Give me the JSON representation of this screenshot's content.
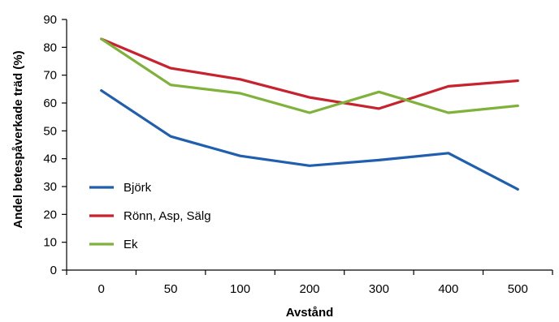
{
  "chart_data": {
    "type": "line",
    "title": "",
    "xlabel": "Avstånd",
    "ylabel": "Andel betespåverkade träd (%)",
    "categories": [
      "0",
      "50",
      "100",
      "200",
      "300",
      "400",
      "500"
    ],
    "ylim": [
      0,
      90
    ],
    "yticks": [
      0,
      10,
      20,
      30,
      40,
      50,
      60,
      70,
      80,
      90
    ],
    "grid": false,
    "legend_position": "left",
    "series": [
      {
        "name": "Björk",
        "color": "#1f5fae",
        "values": [
          64.5,
          48,
          41,
          37.5,
          39.5,
          42,
          29
        ]
      },
      {
        "name": "Rönn, Asp, Sälg",
        "color": "#c8222e",
        "values": [
          83,
          72.5,
          68.5,
          62,
          58,
          66,
          68
        ]
      },
      {
        "name": "Ek",
        "color": "#7fb23a",
        "values": [
          83,
          66.5,
          63.5,
          56.5,
          64,
          56.5,
          59
        ]
      }
    ]
  }
}
